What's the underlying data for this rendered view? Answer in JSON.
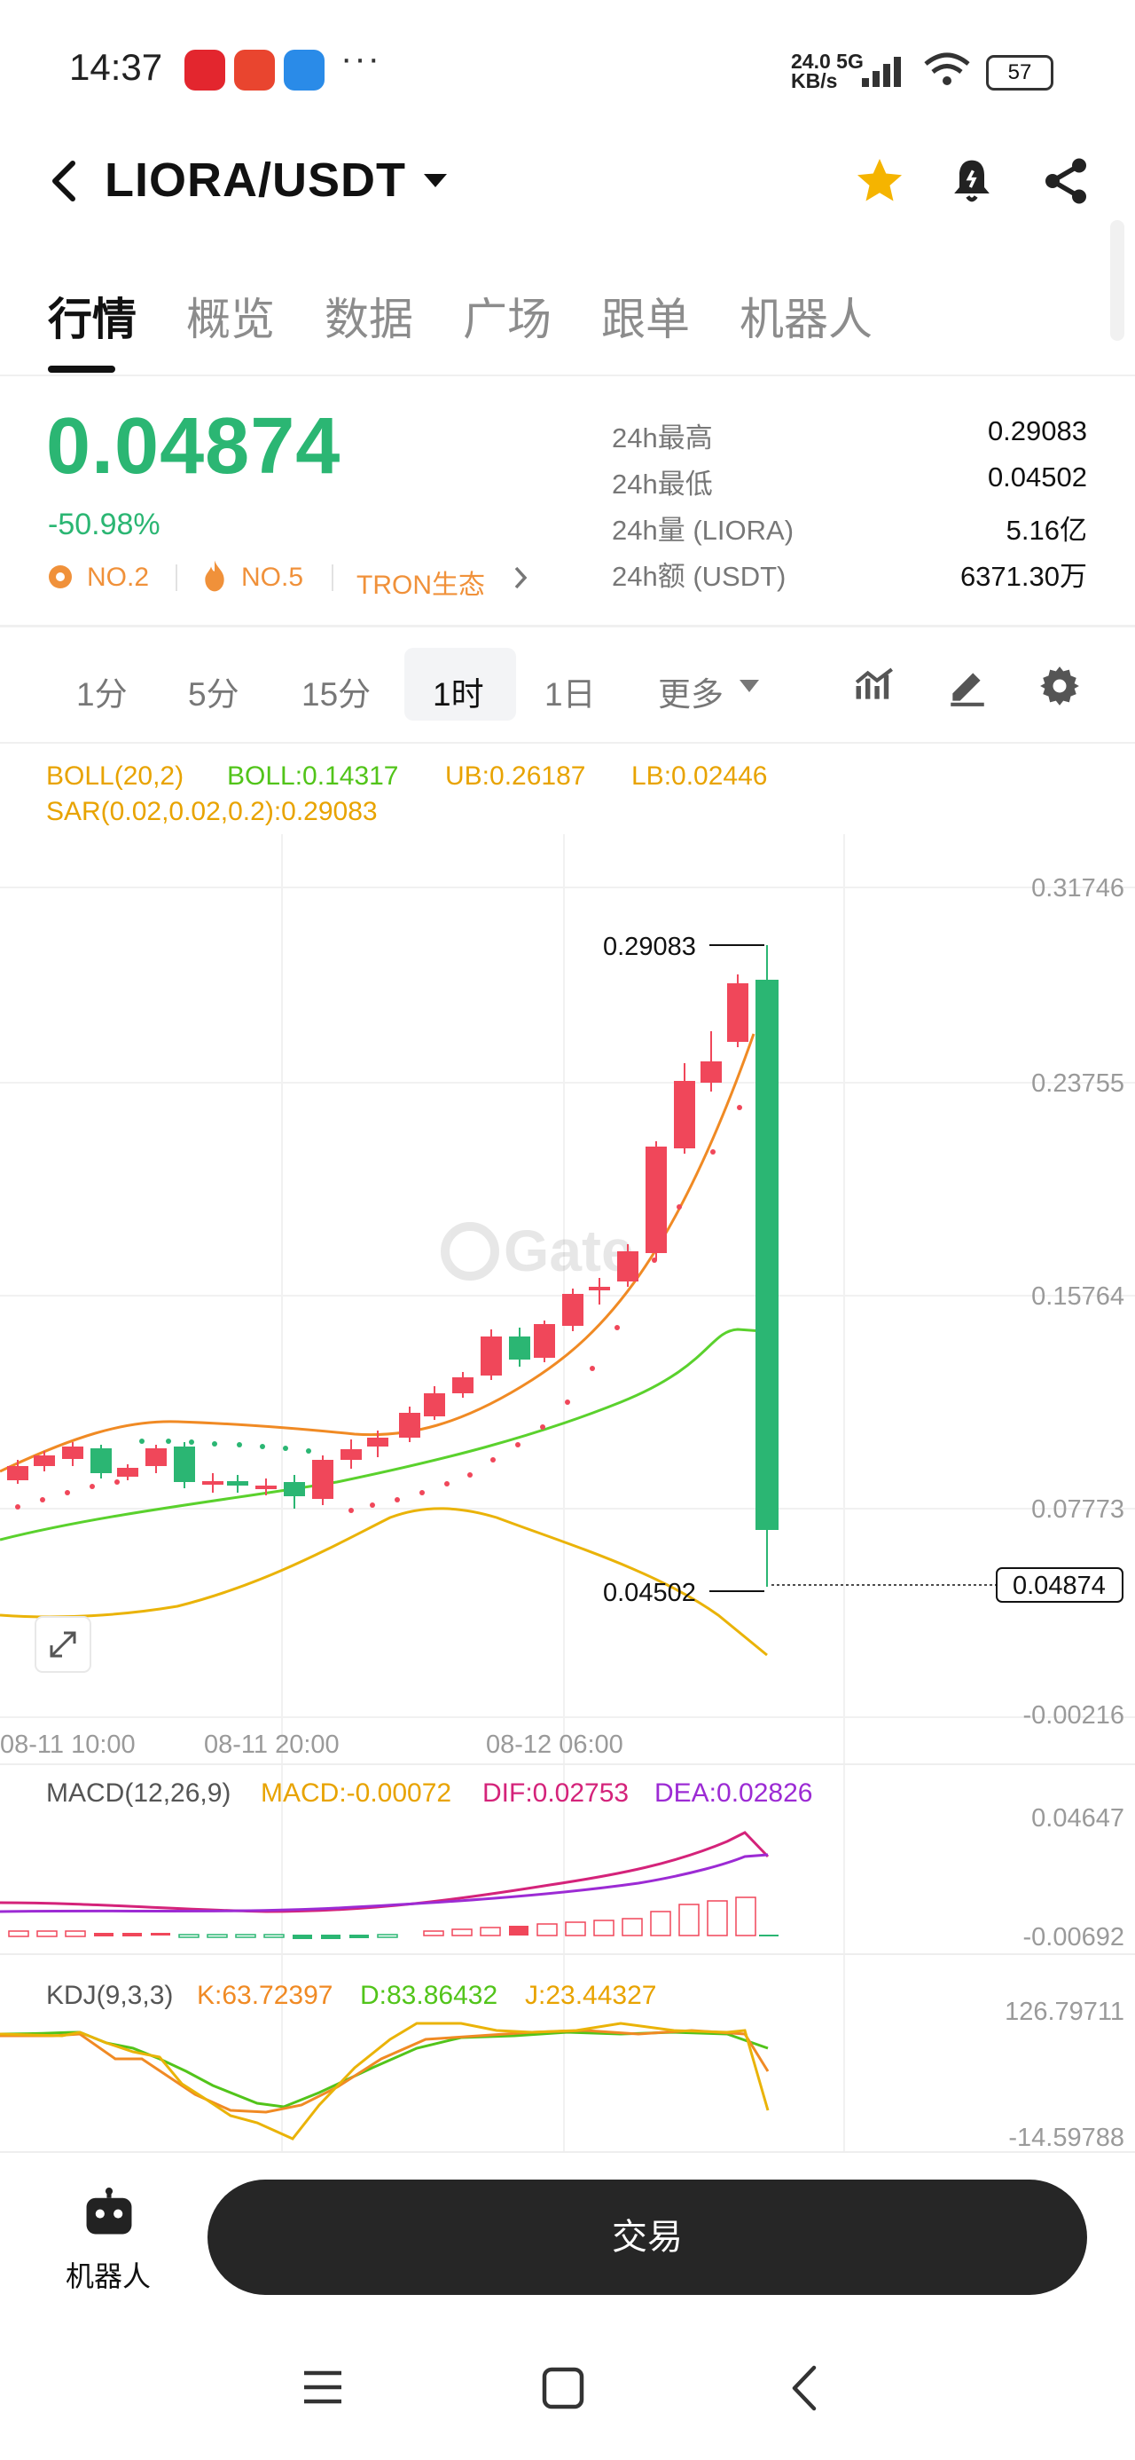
{
  "status_bar": {
    "time": "14:37",
    "dots": "···",
    "network_speed": "24.0",
    "network_unit": "KB/s",
    "network_type": "5G",
    "battery": "57",
    "app_icons": [
      "app-icon-red",
      "app-icon-takeout",
      "app-icon-blue"
    ],
    "app_colors": [
      "#e3262e",
      "#e9452f",
      "#2a8be8"
    ]
  },
  "header": {
    "title": "LIORA/USDT",
    "back_icon": "chevron-left-icon",
    "dropdown_icon": "caret-down-icon",
    "icons": [
      "star-icon",
      "bell-icon",
      "share-icon"
    ],
    "star_color": "#f5b400"
  },
  "tabs": [
    {
      "label": "行情",
      "active": true
    },
    {
      "label": "概览",
      "active": false
    },
    {
      "label": "数据",
      "active": false
    },
    {
      "label": "广场",
      "active": false
    },
    {
      "label": "跟单",
      "active": false
    },
    {
      "label": "机器人",
      "active": false
    }
  ],
  "price": {
    "last": "0.04874",
    "change": "-50.98%",
    "color": "#2bb673",
    "tags": [
      "NO.2",
      "NO.5",
      "TRON生态"
    ]
  },
  "stats": [
    {
      "label": "24h最高",
      "value": "0.29083"
    },
    {
      "label": "24h最低",
      "value": "0.04502"
    },
    {
      "label": "24h量 (LIORA)",
      "value": "5.16亿"
    },
    {
      "label": "24h额 (USDT)",
      "value": "6371.30万"
    }
  ],
  "timeframes": [
    {
      "label": "1分"
    },
    {
      "label": "5分"
    },
    {
      "label": "15分"
    },
    {
      "label": "1时",
      "active": true
    },
    {
      "label": "1日"
    },
    {
      "label": "更多"
    }
  ],
  "toolbar_icons": [
    "indicator-icon",
    "pencil-icon",
    "settings-icon"
  ],
  "indicators": {
    "boll_name": "BOLL(20,2)",
    "boll_mid": "BOLL:0.14317",
    "boll_ub": "UB:0.26187",
    "boll_lb": "LB:0.02446",
    "sar": "SAR(0.02,0.02,0.2):0.29083",
    "macd_name": "MACD(12,26,9)",
    "macd": "MACD:-0.00072",
    "dif": "DIF:0.02753",
    "dea": "DEA:0.02826",
    "kdj_name": "KDJ(9,3,3)",
    "k": "K:63.72397",
    "d": "D:83.86432",
    "j": "J:23.44327"
  },
  "chart_data": {
    "type": "candlestick",
    "y_ticks": [
      "0.31746",
      "0.23755",
      "0.15764",
      "0.07773",
      "-0.00216"
    ],
    "x_ticks": [
      "08-11 10:00",
      "08-11 20:00",
      "08-12 06:00"
    ],
    "high_label": "0.29083",
    "low_label": "0.04502",
    "last_label": "0.04874",
    "macd_ticks": [
      "0.04647",
      "-0.00692"
    ],
    "kdj_ticks": [
      "126.79711",
      "-14.59788"
    ],
    "watermark": "Gate",
    "colors": {
      "up": "#f0475a",
      "down": "#2bb673",
      "boll_mid": "#52c41a",
      "boll_band": "#f0a30a",
      "sar": "#f0475a"
    }
  },
  "bottom": {
    "robot_label": "机器人",
    "trade_label": "交易"
  }
}
